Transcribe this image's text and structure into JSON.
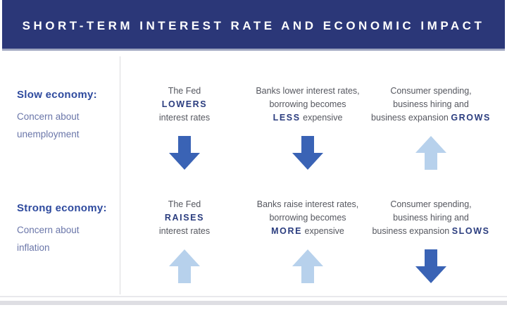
{
  "header": {
    "title": "SHORT-TERM INTEREST RATE AND ECONOMIC IMPACT"
  },
  "colors": {
    "banner_bg": "#2B3778",
    "banner_edge": "#9FA6C0",
    "title_text": "#FFFFFF",
    "label_title_blue": "#2E4A9E",
    "label_sub_blue": "#6A76A9",
    "body_text_gray": "#55575F",
    "keyword_navy": "#2B3D7F",
    "arrow_dark_blue": "#3A63B5",
    "arrow_light_blue": "#B7D1EC",
    "divider_gray": "#DBDBDF"
  },
  "rows": [
    {
      "label_title": "Slow economy:",
      "label_sub": "Concern about unemployment",
      "cells": [
        {
          "lines": [
            [
              {
                "t": "The Fed"
              }
            ],
            [
              {
                "t": "LOWERS",
                "b": true
              }
            ],
            [
              {
                "t": "interest rates"
              }
            ]
          ],
          "arrow": "down",
          "tone": "dark"
        },
        {
          "lines": [
            [
              {
                "t": "Banks lower interest rates,"
              }
            ],
            [
              {
                "t": "borrowing becomes"
              }
            ],
            [
              {
                "t": "LESS",
                "b": true
              },
              {
                "t": " expensive"
              }
            ]
          ],
          "arrow": "down",
          "tone": "dark"
        },
        {
          "lines": [
            [
              {
                "t": "Consumer spending,"
              }
            ],
            [
              {
                "t": "business hiring and"
              }
            ],
            [
              {
                "t": "business expansion "
              },
              {
                "t": "GROWS",
                "b": true
              }
            ]
          ],
          "arrow": "up",
          "tone": "light"
        }
      ]
    },
    {
      "label_title": "Strong economy:",
      "label_sub": "Concern about inflation",
      "cells": [
        {
          "lines": [
            [
              {
                "t": "The Fed"
              }
            ],
            [
              {
                "t": "RAISES",
                "b": true
              }
            ],
            [
              {
                "t": "interest rates"
              }
            ]
          ],
          "arrow": "up",
          "tone": "light"
        },
        {
          "lines": [
            [
              {
                "t": "Banks raise interest rates,"
              }
            ],
            [
              {
                "t": "borrowing becomes"
              }
            ],
            [
              {
                "t": "MORE",
                "b": true
              },
              {
                "t": " expensive"
              }
            ]
          ],
          "arrow": "up",
          "tone": "light"
        },
        {
          "lines": [
            [
              {
                "t": "Consumer spending,"
              }
            ],
            [
              {
                "t": "business hiring and"
              }
            ],
            [
              {
                "t": "business expansion "
              },
              {
                "t": "SLOWS",
                "b": true
              }
            ]
          ],
          "arrow": "down",
          "tone": "dark"
        }
      ]
    }
  ]
}
